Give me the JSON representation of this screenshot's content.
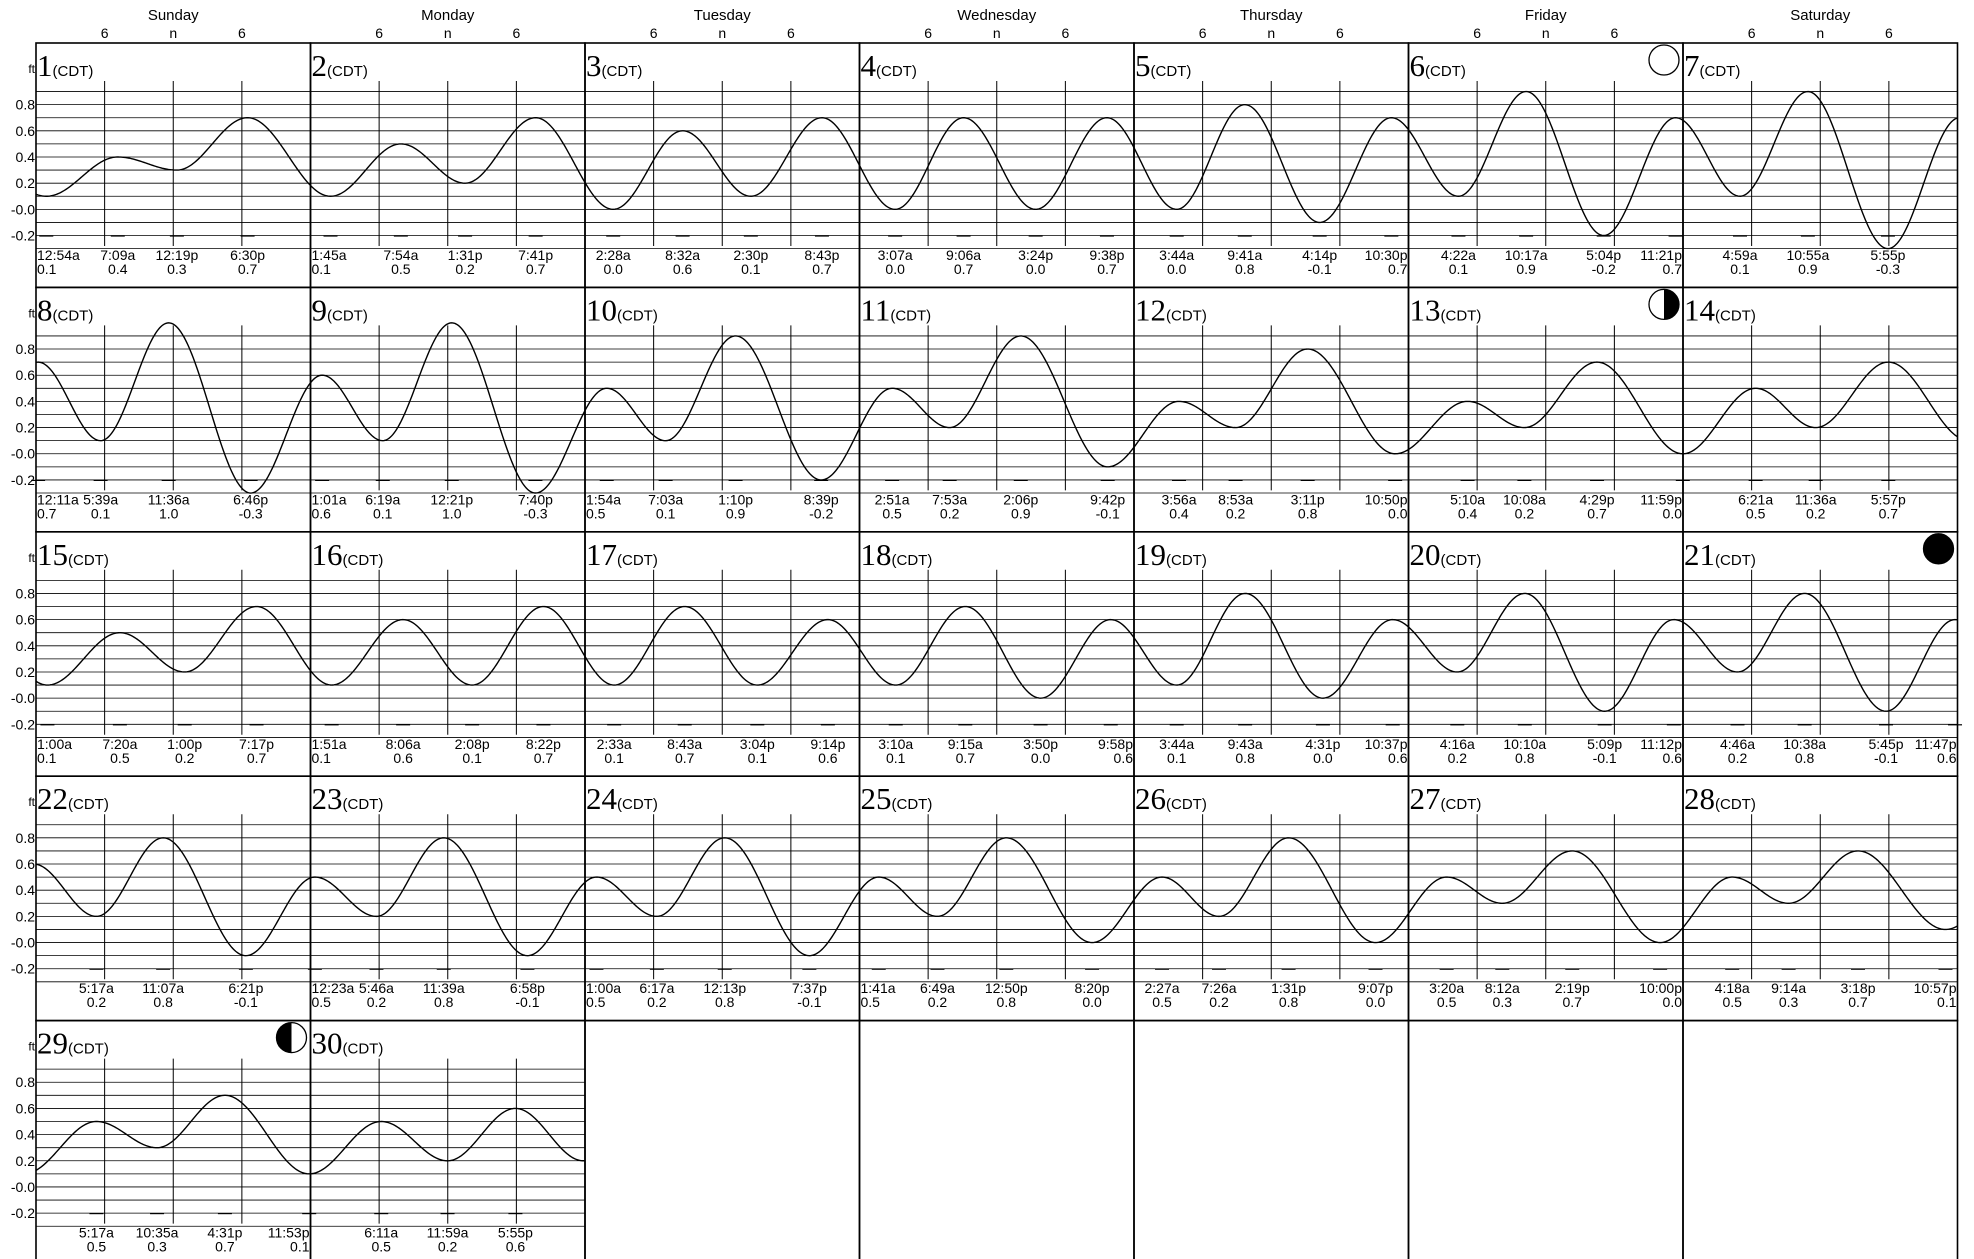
{
  "chart_data": {
    "type": "line",
    "title": "",
    "ylabel": "ft",
    "ylim": [
      -0.3,
      1.0
    ],
    "y_ticks": [
      "0.8",
      "0.6",
      "0.4",
      "0.2",
      "-0.0",
      "-0.2"
    ],
    "x_hour_ticks": [
      "6",
      "n",
      "6"
    ],
    "grid": true,
    "timezone": "(CDT)",
    "weekdays": [
      "Sunday",
      "Monday",
      "Tuesday",
      "Wednesday",
      "Thursday",
      "Friday",
      "Saturday"
    ],
    "days": [
      {
        "day": 1,
        "tides": [
          {
            "time": "12:54a",
            "height": 0.1
          },
          {
            "time": "7:09a",
            "height": 0.4
          },
          {
            "time": "12:19p",
            "height": 0.3
          },
          {
            "time": "6:30p",
            "height": 0.7
          }
        ]
      },
      {
        "day": 2,
        "tides": [
          {
            "time": "1:45a",
            "height": 0.1
          },
          {
            "time": "7:54a",
            "height": 0.5
          },
          {
            "time": "1:31p",
            "height": 0.2
          },
          {
            "time": "7:41p",
            "height": 0.7
          }
        ]
      },
      {
        "day": 3,
        "tides": [
          {
            "time": "2:28a",
            "height": 0.0
          },
          {
            "time": "8:32a",
            "height": 0.6
          },
          {
            "time": "2:30p",
            "height": 0.1
          },
          {
            "time": "8:43p",
            "height": 0.7
          }
        ]
      },
      {
        "day": 4,
        "tides": [
          {
            "time": "3:07a",
            "height": 0.0
          },
          {
            "time": "9:06a",
            "height": 0.7
          },
          {
            "time": "3:24p",
            "height": 0.0
          },
          {
            "time": "9:38p",
            "height": 0.7
          }
        ]
      },
      {
        "day": 5,
        "tides": [
          {
            "time": "3:44a",
            "height": 0.0
          },
          {
            "time": "9:41a",
            "height": 0.8
          },
          {
            "time": "4:14p",
            "height": -0.1
          },
          {
            "time": "10:30p",
            "height": 0.7
          }
        ]
      },
      {
        "day": 6,
        "moon": "full",
        "tides": [
          {
            "time": "4:22a",
            "height": 0.1
          },
          {
            "time": "10:17a",
            "height": 0.9
          },
          {
            "time": "5:04p",
            "height": -0.2
          },
          {
            "time": "11:21p",
            "height": 0.7
          }
        ]
      },
      {
        "day": 7,
        "tides": [
          {
            "time": "4:59a",
            "height": 0.1
          },
          {
            "time": "10:55a",
            "height": 0.9
          },
          {
            "time": "5:55p",
            "height": -0.3
          }
        ]
      },
      {
        "day": 8,
        "tides": [
          {
            "time": "12:11a",
            "height": 0.7
          },
          {
            "time": "5:39a",
            "height": 0.1
          },
          {
            "time": "11:36a",
            "height": 1.0
          },
          {
            "time": "6:46p",
            "height": -0.3
          }
        ]
      },
      {
        "day": 9,
        "tides": [
          {
            "time": "1:01a",
            "height": 0.6
          },
          {
            "time": "6:19a",
            "height": 0.1
          },
          {
            "time": "12:21p",
            "height": 1.0
          },
          {
            "time": "7:40p",
            "height": -0.3
          }
        ]
      },
      {
        "day": 10,
        "tides": [
          {
            "time": "1:54a",
            "height": 0.5
          },
          {
            "time": "7:03a",
            "height": 0.1
          },
          {
            "time": "1:10p",
            "height": 0.9
          },
          {
            "time": "8:39p",
            "height": -0.2
          }
        ]
      },
      {
        "day": 11,
        "tides": [
          {
            "time": "2:51a",
            "height": 0.5
          },
          {
            "time": "7:53a",
            "height": 0.2
          },
          {
            "time": "2:06p",
            "height": 0.9
          },
          {
            "time": "9:42p",
            "height": -0.1
          }
        ]
      },
      {
        "day": 12,
        "tides": [
          {
            "time": "3:56a",
            "height": 0.4
          },
          {
            "time": "8:53a",
            "height": 0.2
          },
          {
            "time": "3:11p",
            "height": 0.8
          },
          {
            "time": "10:50p",
            "height": 0.0
          }
        ]
      },
      {
        "day": 13,
        "moon": "last-quarter",
        "tides": [
          {
            "time": "5:10a",
            "height": 0.4
          },
          {
            "time": "10:08a",
            "height": 0.2
          },
          {
            "time": "4:29p",
            "height": 0.7
          },
          {
            "time": "11:59p",
            "height": 0.0
          }
        ]
      },
      {
        "day": 14,
        "tides": [
          {
            "time": "6:21a",
            "height": 0.5
          },
          {
            "time": "11:36a",
            "height": 0.2
          },
          {
            "time": "5:57p",
            "height": 0.7
          }
        ]
      },
      {
        "day": 15,
        "tides": [
          {
            "time": "1:00a",
            "height": 0.1
          },
          {
            "time": "7:20a",
            "height": 0.5
          },
          {
            "time": "1:00p",
            "height": 0.2
          },
          {
            "time": "7:17p",
            "height": 0.7
          }
        ]
      },
      {
        "day": 16,
        "tides": [
          {
            "time": "1:51a",
            "height": 0.1
          },
          {
            "time": "8:06a",
            "height": 0.6
          },
          {
            "time": "2:08p",
            "height": 0.1
          },
          {
            "time": "8:22p",
            "height": 0.7
          }
        ]
      },
      {
        "day": 17,
        "tides": [
          {
            "time": "2:33a",
            "height": 0.1
          },
          {
            "time": "8:43a",
            "height": 0.7
          },
          {
            "time": "3:04p",
            "height": 0.1
          },
          {
            "time": "9:14p",
            "height": 0.6
          }
        ]
      },
      {
        "day": 18,
        "tides": [
          {
            "time": "3:10a",
            "height": 0.1
          },
          {
            "time": "9:15a",
            "height": 0.7
          },
          {
            "time": "3:50p",
            "height": 0.0
          },
          {
            "time": "9:58p",
            "height": 0.6
          }
        ]
      },
      {
        "day": 19,
        "tides": [
          {
            "time": "3:44a",
            "height": 0.1
          },
          {
            "time": "9:43a",
            "height": 0.8
          },
          {
            "time": "4:31p",
            "height": 0.0
          },
          {
            "time": "10:37p",
            "height": 0.6
          }
        ]
      },
      {
        "day": 20,
        "tides": [
          {
            "time": "4:16a",
            "height": 0.2
          },
          {
            "time": "10:10a",
            "height": 0.8
          },
          {
            "time": "5:09p",
            "height": -0.1
          },
          {
            "time": "11:12p",
            "height": 0.6
          }
        ]
      },
      {
        "day": 21,
        "moon": "new",
        "tides": [
          {
            "time": "4:46a",
            "height": 0.2
          },
          {
            "time": "10:38a",
            "height": 0.8
          },
          {
            "time": "5:45p",
            "height": -0.1
          },
          {
            "time": "11:47p",
            "height": 0.6
          }
        ]
      },
      {
        "day": 22,
        "tides": [
          {
            "time": "5:17a",
            "height": 0.2
          },
          {
            "time": "11:07a",
            "height": 0.8
          },
          {
            "time": "6:21p",
            "height": -0.1
          }
        ]
      },
      {
        "day": 23,
        "tides": [
          {
            "time": "12:23a",
            "height": 0.5
          },
          {
            "time": "5:46a",
            "height": 0.2
          },
          {
            "time": "11:39a",
            "height": 0.8
          },
          {
            "time": "6:58p",
            "height": -0.1
          }
        ]
      },
      {
        "day": 24,
        "tides": [
          {
            "time": "1:00a",
            "height": 0.5
          },
          {
            "time": "6:17a",
            "height": 0.2
          },
          {
            "time": "12:13p",
            "height": 0.8
          },
          {
            "time": "7:37p",
            "height": -0.1
          }
        ]
      },
      {
        "day": 25,
        "tides": [
          {
            "time": "1:41a",
            "height": 0.5
          },
          {
            "time": "6:49a",
            "height": 0.2
          },
          {
            "time": "12:50p",
            "height": 0.8
          },
          {
            "time": "8:20p",
            "height": 0.0
          }
        ]
      },
      {
        "day": 26,
        "tides": [
          {
            "time": "2:27a",
            "height": 0.5
          },
          {
            "time": "7:26a",
            "height": 0.2
          },
          {
            "time": "1:31p",
            "height": 0.8
          },
          {
            "time": "9:07p",
            "height": 0.0
          }
        ]
      },
      {
        "day": 27,
        "tides": [
          {
            "time": "3:20a",
            "height": 0.5
          },
          {
            "time": "8:12a",
            "height": 0.3
          },
          {
            "time": "2:19p",
            "height": 0.7
          },
          {
            "time": "10:00p",
            "height": 0.0
          }
        ]
      },
      {
        "day": 28,
        "tides": [
          {
            "time": "4:18a",
            "height": 0.5
          },
          {
            "time": "9:14a",
            "height": 0.3
          },
          {
            "time": "3:18p",
            "height": 0.7
          },
          {
            "time": "10:57p",
            "height": 0.1
          }
        ]
      },
      {
        "day": 29,
        "moon": "first-quarter",
        "tides": [
          {
            "time": "5:17a",
            "height": 0.5
          },
          {
            "time": "10:35a",
            "height": 0.3
          },
          {
            "time": "4:31p",
            "height": 0.7
          },
          {
            "time": "11:53p",
            "height": 0.1
          }
        ]
      },
      {
        "day": 30,
        "tides": [
          {
            "time": "6:11a",
            "height": 0.5
          },
          {
            "time": "11:59a",
            "height": 0.2
          },
          {
            "time": "5:55p",
            "height": 0.6
          }
        ]
      }
    ],
    "colors": {
      "line": "#000000",
      "grid": "#000000",
      "background": "#ffffff"
    }
  }
}
